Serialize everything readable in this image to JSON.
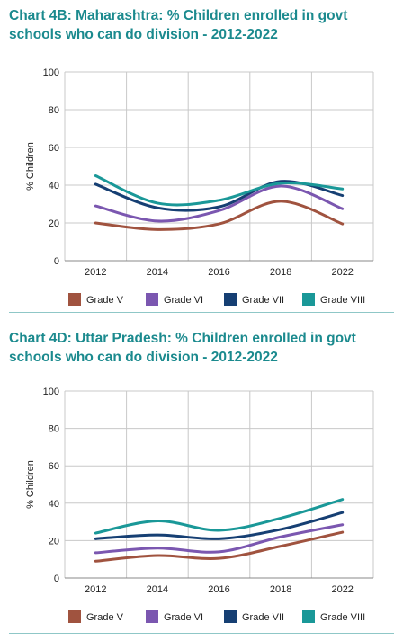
{
  "chart_data": [
    {
      "type": "line",
      "title": "Chart 4B: Maharashtra: % Children enrolled in govt schools who can do division - 2012-2022",
      "ylabel": "% Children",
      "xlabel": "",
      "x": [
        "2012",
        "2014",
        "2016",
        "2018",
        "2022"
      ],
      "ylim": [
        0,
        100
      ],
      "yticks": [
        0,
        20,
        40,
        60,
        80,
        100
      ],
      "grid": true,
      "legend": "bottom",
      "series": [
        {
          "name": "Grade V",
          "color": "#a0533f",
          "values": [
            20,
            16.5,
            19.5,
            31.5,
            19.5
          ]
        },
        {
          "name": "Grade VI",
          "color": "#7b57b0",
          "values": [
            29,
            21,
            26.5,
            39.5,
            27.5
          ]
        },
        {
          "name": "Grade VII",
          "color": "#163f73",
          "values": [
            40.5,
            28,
            28.5,
            42,
            34.5
          ]
        },
        {
          "name": "Grade VIII",
          "color": "#1a9898",
          "values": [
            45,
            30.5,
            32,
            41,
            38
          ]
        }
      ]
    },
    {
      "type": "line",
      "title": "Chart 4D: Uttar Pradesh: % Children enrolled in govt schools who can do division - 2012-2022",
      "ylabel": "% Children",
      "xlabel": "",
      "x": [
        "2012",
        "2014",
        "2016",
        "2018",
        "2022"
      ],
      "ylim": [
        0,
        100
      ],
      "yticks": [
        0,
        20,
        40,
        60,
        80,
        100
      ],
      "grid": true,
      "legend": "bottom",
      "series": [
        {
          "name": "Grade V",
          "color": "#a0533f",
          "values": [
            9,
            12,
            10.5,
            17,
            24.5
          ]
        },
        {
          "name": "Grade VI",
          "color": "#7b57b0",
          "values": [
            13.5,
            16,
            14,
            22,
            28.5
          ]
        },
        {
          "name": "Grade VII",
          "color": "#163f73",
          "values": [
            21,
            23,
            21,
            26,
            35
          ]
        },
        {
          "name": "Grade VIII",
          "color": "#1a9898",
          "values": [
            24,
            30.5,
            25.5,
            32,
            42
          ]
        }
      ]
    }
  ]
}
